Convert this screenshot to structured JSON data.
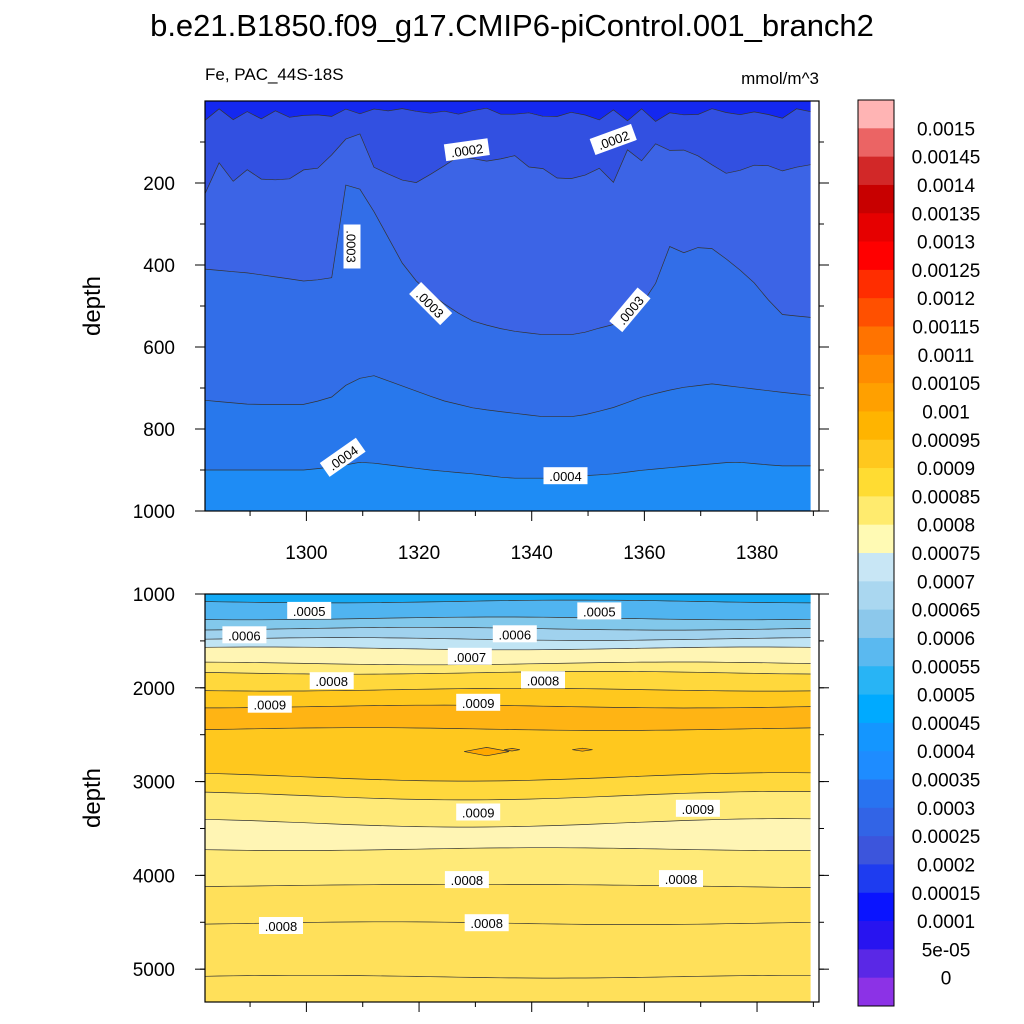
{
  "title": "b.e21.B1850.f09_g17.CMIP6-piControl.001_branch2",
  "chart_data": [
    {
      "type": "heatmap",
      "panel": "upper",
      "left_label": "Fe, PAC_44S-18S",
      "units": "mmol/m^3",
      "xlabel": "",
      "ylabel": "depth",
      "xlim": [
        1282,
        1391
      ],
      "ylim": [
        1000,
        0
      ],
      "x_ticks": [
        1300,
        1320,
        1340,
        1360,
        1380
      ],
      "y_ticks": [
        200,
        400,
        600,
        800,
        1000
      ],
      "contour_labels": [
        {
          "text": ".0002",
          "x": 1328.5,
          "y": 120,
          "angle": -8
        },
        {
          "text": ".0002",
          "x": 1354.5,
          "y": 95,
          "angle": -20
        },
        {
          "text": ".0003",
          "x": 1308,
          "y": 355,
          "angle": 90
        },
        {
          "text": ".0003",
          "x": 1322,
          "y": 495,
          "angle": 45
        },
        {
          "text": ".0003",
          "x": 1357.5,
          "y": 510,
          "angle": -50
        },
        {
          "text": ".0004",
          "x": 1306.5,
          "y": 870,
          "angle": -35
        },
        {
          "text": ".0004",
          "x": 1346,
          "y": 915,
          "angle": 0
        }
      ]
    },
    {
      "type": "heatmap",
      "panel": "lower",
      "ylabel": "depth",
      "xlim": [
        1282,
        1391
      ],
      "ylim": [
        5350,
        1000
      ],
      "y_ticks": [
        1000,
        2000,
        3000,
        4000,
        5000
      ],
      "contour_labels": [
        {
          "text": ".0005",
          "x": 1300.5,
          "y": 1180,
          "angle": 0
        },
        {
          "text": ".0005",
          "x": 1352,
          "y": 1185,
          "angle": 0
        },
        {
          "text": ".0006",
          "x": 1289,
          "y": 1440,
          "angle": 0
        },
        {
          "text": ".0006",
          "x": 1337,
          "y": 1430,
          "angle": 0
        },
        {
          "text": ".0007",
          "x": 1329,
          "y": 1670,
          "angle": 0
        },
        {
          "text": ".0008",
          "x": 1304.5,
          "y": 1930,
          "angle": 0
        },
        {
          "text": ".0008",
          "x": 1342,
          "y": 1920,
          "angle": 0
        },
        {
          "text": ".0009",
          "x": 1293.5,
          "y": 2180,
          "angle": 0
        },
        {
          "text": ".0009",
          "x": 1330.5,
          "y": 2160,
          "angle": 0
        },
        {
          "text": ".0009",
          "x": 1330.5,
          "y": 3330,
          "angle": 0
        },
        {
          "text": ".0009",
          "x": 1369.5,
          "y": 3290,
          "angle": 0
        },
        {
          "text": ".0008",
          "x": 1328.5,
          "y": 4050,
          "angle": 0
        },
        {
          "text": ".0008",
          "x": 1366.5,
          "y": 4040,
          "angle": 0
        },
        {
          "text": ".0008",
          "x": 1295.5,
          "y": 4540,
          "angle": 0
        },
        {
          "text": ".0008",
          "x": 1332,
          "y": 4510,
          "angle": 0
        }
      ]
    }
  ],
  "colorbar": {
    "labels": [
      "0.0015",
      "0.00145",
      "0.0014",
      "0.00135",
      "0.0013",
      "0.00125",
      "0.0012",
      "0.00115",
      "0.0011",
      "0.00105",
      "0.001",
      "0.00095",
      "0.0009",
      "0.00085",
      "0.0008",
      "0.00075",
      "0.0007",
      "0.00065",
      "0.0006",
      "0.00055",
      "0.0005",
      "0.00045",
      "0.0004",
      "0.00035",
      "0.0003",
      "0.00025",
      "0.0002",
      "0.00015",
      "0.0001",
      "5e-05",
      "0"
    ],
    "colors_top_to_bottom": [
      "#ffb4b4",
      "#eb6464",
      "#d22828",
      "#c80000",
      "#e60000",
      "#ff0000",
      "#ff2d00",
      "#ff5000",
      "#ff7300",
      "#ff8c00",
      "#ffa000",
      "#ffb400",
      "#ffc81e",
      "#ffdc32",
      "#ffeb6e",
      "#fffab4",
      "#c8e6f5",
      "#aad7f0",
      "#8cc8eb",
      "#5ab9f0",
      "#28b4f5",
      "#00aaff",
      "#1496ff",
      "#1e8cff",
      "#2873f0",
      "#3264e6",
      "#3c55dc",
      "#1e3cf0",
      "#0a14ff",
      "#2814f0",
      "#5a28e6",
      "#8c32e6"
    ]
  },
  "upper_band_colors": [
    "#1428f0",
    "#3250e1",
    "#3c64e6",
    "#326ee8",
    "#2878ec",
    "#1e8cf5",
    "#149cff"
  ],
  "lower_band_colors": [
    "#14aaf5",
    "#50b4f0",
    "#82c8eb",
    "#a0d2ee",
    "#c0e4f4",
    "#fff5b4",
    "#ffea78",
    "#ffd83c",
    "#ffc81e",
    "#ffb414",
    "#ffc81e",
    "#ffd83c",
    "#ffea78",
    "#fff5b4",
    "#ffea78",
    "#ffe05a"
  ]
}
